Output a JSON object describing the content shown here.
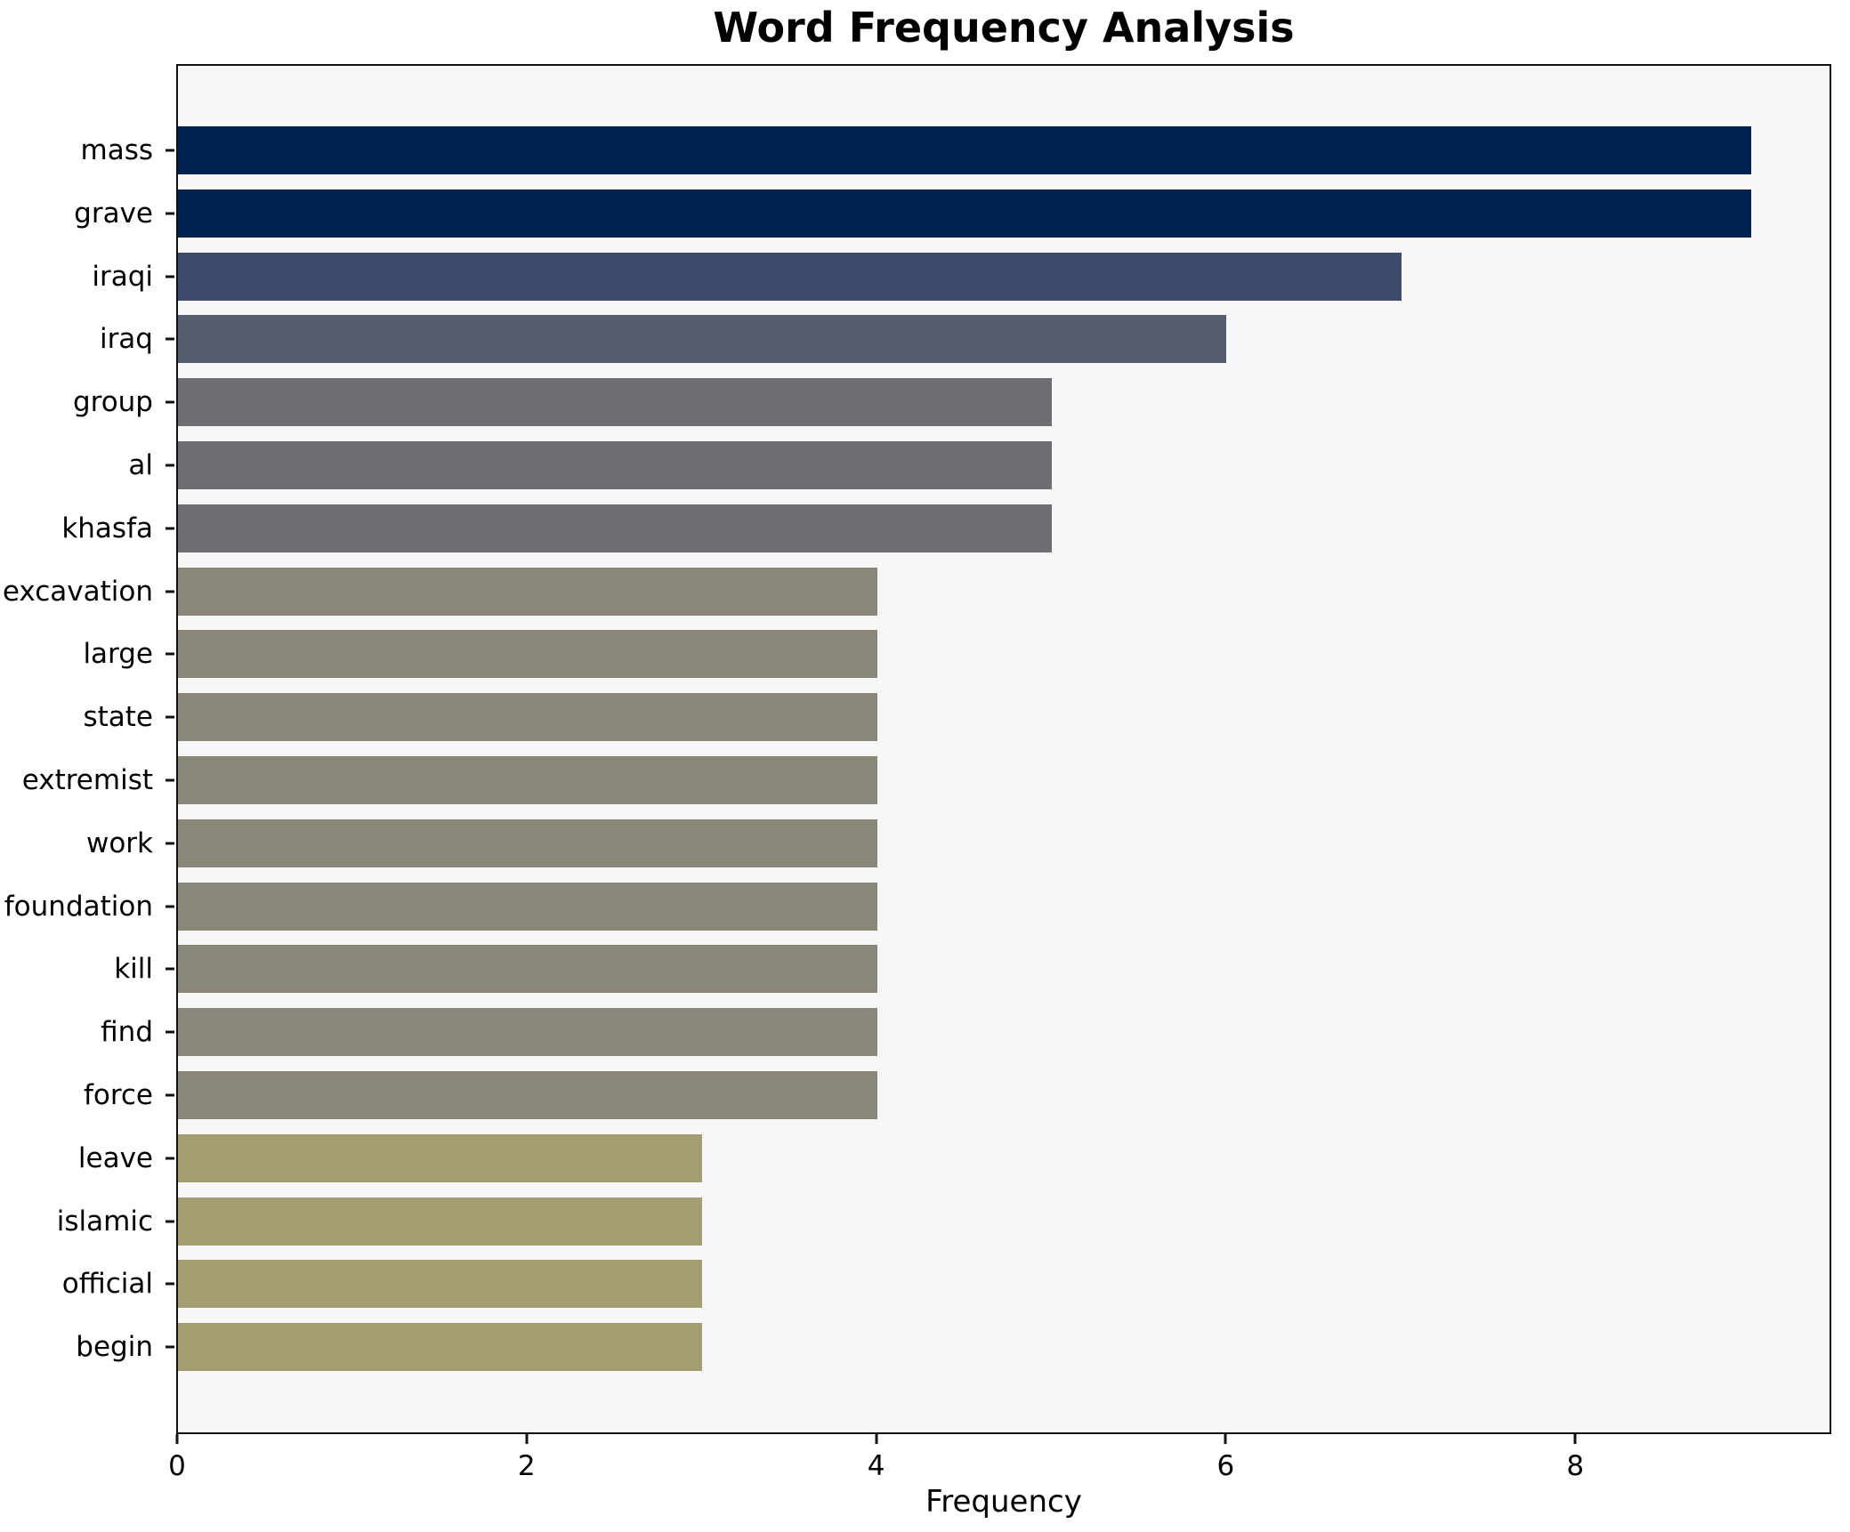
{
  "chart_data": {
    "type": "bar",
    "orientation": "horizontal",
    "title": "Word Frequency Analysis",
    "xlabel": "Frequency",
    "ylabel": "",
    "categories": [
      "mass",
      "grave",
      "iraqi",
      "iraq",
      "group",
      "al",
      "khasfa",
      "excavation",
      "large",
      "state",
      "extremist",
      "work",
      "foundation",
      "kill",
      "find",
      "force",
      "leave",
      "islamic",
      "official",
      "begin"
    ],
    "values": [
      9,
      9,
      7,
      6,
      5,
      5,
      5,
      4,
      4,
      4,
      4,
      4,
      4,
      4,
      4,
      4,
      3,
      3,
      3,
      3
    ],
    "bar_colors": [
      "#00224e",
      "#00224e",
      "#3c4a6b",
      "#565d6e",
      "#6d6e71",
      "#6d6e71",
      "#6d6e71",
      "#8a8779",
      "#8a8779",
      "#8a8779",
      "#8a8779",
      "#8a8779",
      "#8a8779",
      "#8a8779",
      "#8a8779",
      "#8a8779",
      "#a59d72",
      "#a59d72",
      "#a59d72",
      "#a59d72"
    ],
    "xticks": [
      0,
      2,
      4,
      6,
      8
    ],
    "xlim": [
      0,
      9.45
    ],
    "grid": false,
    "legend": "none",
    "plot_background": "#f7f7f7",
    "figure_background": "#ffffff",
    "frame_color": "#111111"
  }
}
